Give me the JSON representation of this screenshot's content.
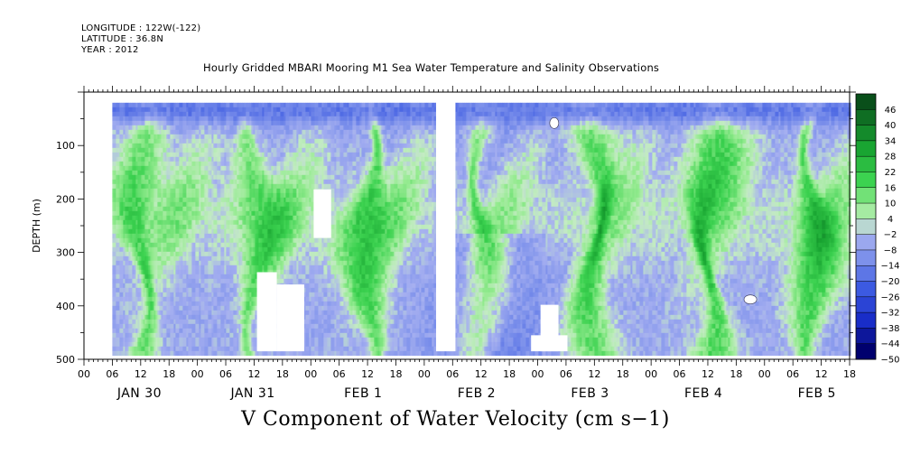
{
  "header": {
    "longitude": "LONGITUDE : 122W(-122)",
    "latitude": "LATITUDE : 36.8N",
    "year": "YEAR : 2012",
    "title": "Hourly Gridded MBARI Mooring M1 Sea Water Temperature and Salinity Observations"
  },
  "footer": {
    "variable_title": "V Component of Water Velocity (cm s−1)"
  },
  "colors": {
    "positive_max": "#0a4d1a",
    "positive_mid": "#22c03a",
    "near_zero": "#b7f0b2",
    "negative_mid": "#9aa8f0",
    "negative_max": "#00007a",
    "missing": "#ffffff"
  },
  "chart_data": {
    "type": "heatmap",
    "title": "Hourly Gridded MBARI Mooring M1 Sea Water Temperature and Salinity Observations",
    "variable": "V Component of Water Velocity (cm s−1)",
    "ylabel": "DEPTH (m)",
    "ylim": [
      500,
      0
    ],
    "y_ticks": [
      100,
      200,
      300,
      400,
      500
    ],
    "x_hour_ticks": [
      "00",
      "06",
      "12",
      "18",
      "00",
      "06",
      "12",
      "18",
      "00",
      "06",
      "12",
      "18",
      "00",
      "06",
      "12",
      "18",
      "00",
      "06",
      "12",
      "18",
      "00",
      "06",
      "12",
      "18",
      "00",
      "06",
      "12",
      "18"
    ],
    "x_day_labels": [
      "JAN 30",
      "JAN 31",
      "FEB  1",
      "FEB  2",
      "FEB  3",
      "FEB  4",
      "FEB  5"
    ],
    "x_range_hours": [
      0,
      162
    ],
    "data_extent": {
      "start_hour": 6,
      "end_hour": 162,
      "min_depth": 20,
      "max_depth": 485
    },
    "colorbar": {
      "levels": [
        46,
        40,
        34,
        28,
        22,
        16,
        10,
        4,
        -2,
        -8,
        -14,
        -20,
        -26,
        -32,
        -38,
        -44,
        -50
      ],
      "range": [
        -50,
        52
      ]
    },
    "day_mean_profile_hours": [
      12,
      27,
      36,
      48,
      60,
      75,
      84,
      96,
      110,
      120,
      133,
      147,
      156
    ],
    "v_strong_bands": [
      {
        "center_hour": 12,
        "value": 16
      },
      {
        "center_hour": 36,
        "value": 14
      },
      {
        "center_hour": 60,
        "value": 18
      },
      {
        "center_hour": 84,
        "value": 16
      },
      {
        "center_hour": 108,
        "value": 18
      },
      {
        "center_hour": 132,
        "value": 20
      },
      {
        "center_hour": 154,
        "value": 18
      }
    ],
    "near_surface_value": -18,
    "missing_regions": [
      {
        "hour_start": 36.6,
        "hour_end": 40.8,
        "depth_top": 337,
        "depth_bottom": 485
      },
      {
        "hour_start": 40.8,
        "hour_end": 46.6,
        "depth_top": 360,
        "depth_bottom": 485
      },
      {
        "hour_start": 48.6,
        "hour_end": 52.3,
        "depth_top": 182,
        "depth_bottom": 273
      },
      {
        "hour_start": 74.5,
        "hour_end": 78.6,
        "depth_top": 15,
        "depth_bottom": 485
      },
      {
        "hour_start": 96.6,
        "hour_end": 100.4,
        "depth_top": 398,
        "depth_bottom": 485
      },
      {
        "hour_start": 94.6,
        "hour_end": 102.3,
        "depth_top": 455,
        "depth_bottom": 485
      }
    ]
  }
}
